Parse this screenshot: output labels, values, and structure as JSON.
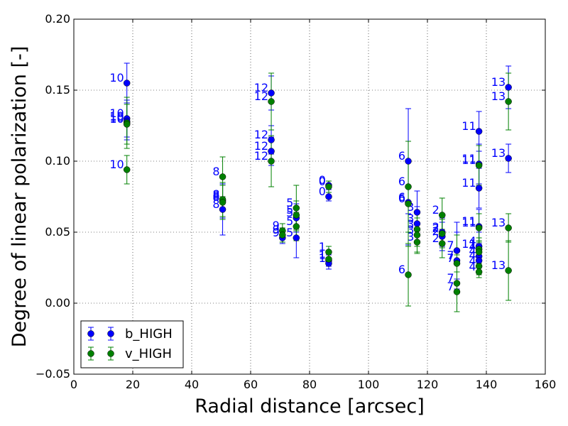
{
  "chart_data": {
    "type": "scatter",
    "xlabel": "Radial distance [arcsec]",
    "ylabel": "Degree of linear polarization [-]",
    "xlim": [
      0,
      160
    ],
    "ylim": [
      -0.05,
      0.2
    ],
    "xticks": [
      "0",
      "20",
      "40",
      "60",
      "80",
      "100",
      "120",
      "140",
      "160"
    ],
    "yticks": [
      "−0.05",
      "0.00",
      "0.05",
      "0.10",
      "0.15",
      "0.20"
    ],
    "grid": true,
    "legend_position": "lower-left",
    "series": [
      {
        "name": "b_HIGH",
        "color": "#0000ff",
        "points": [
          {
            "x": 18,
            "y": 0.155,
            "err": 0.014,
            "label": "10"
          },
          {
            "x": 18,
            "y": 0.13,
            "err": 0.013,
            "label": "10"
          },
          {
            "x": 18,
            "y": 0.128,
            "err": 0.013,
            "label": "10"
          },
          {
            "x": 50.5,
            "y": 0.072,
            "err": 0.012,
            "label": "8"
          },
          {
            "x": 50.5,
            "y": 0.066,
            "err": 0.018,
            "label": "8"
          },
          {
            "x": 67,
            "y": 0.148,
            "err": 0.012,
            "label": "12"
          },
          {
            "x": 67,
            "y": 0.115,
            "err": 0.01,
            "label": "12"
          },
          {
            "x": 67,
            "y": 0.107,
            "err": 0.01,
            "label": "12"
          },
          {
            "x": 70.8,
            "y": 0.046,
            "err": 0.004,
            "label": "9"
          },
          {
            "x": 75.5,
            "y": 0.06,
            "err": 0.01,
            "label": "5"
          },
          {
            "x": 75.5,
            "y": 0.046,
            "err": 0.014,
            "label": "5"
          },
          {
            "x": 86.5,
            "y": 0.083,
            "err": 0.003,
            "label": "0"
          },
          {
            "x": 86.5,
            "y": 0.075,
            "err": 0.003,
            "label": "0"
          },
          {
            "x": 86.5,
            "y": 0.03,
            "err": 0.004,
            "label": "1"
          },
          {
            "x": 86.5,
            "y": 0.028,
            "err": 0.004,
            "label": "1"
          },
          {
            "x": 113.5,
            "y": 0.1,
            "err": 0.037,
            "label": "6"
          },
          {
            "x": 113.5,
            "y": 0.071,
            "err": 0.03,
            "label": "6"
          },
          {
            "x": 116.5,
            "y": 0.064,
            "err": 0.015,
            "label": "3"
          },
          {
            "x": 116.5,
            "y": 0.056,
            "err": 0.012,
            "label": "3"
          },
          {
            "x": 125,
            "y": 0.05,
            "err": 0.01,
            "label": "2"
          },
          {
            "x": 125,
            "y": 0.047,
            "err": 0.01,
            "label": "2"
          },
          {
            "x": 130,
            "y": 0.037,
            "err": 0.02,
            "label": "7"
          },
          {
            "x": 130,
            "y": 0.03,
            "err": 0.02,
            "label": "7"
          },
          {
            "x": 137.5,
            "y": 0.121,
            "err": 0.014,
            "label": "11"
          },
          {
            "x": 137.5,
            "y": 0.098,
            "err": 0.014,
            "label": "11"
          },
          {
            "x": 137.5,
            "y": 0.081,
            "err": 0.014,
            "label": "11"
          },
          {
            "x": 137.5,
            "y": 0.054,
            "err": 0.012,
            "label": "11"
          },
          {
            "x": 137.5,
            "y": 0.04,
            "err": 0.01,
            "label": "4"
          },
          {
            "x": 137.5,
            "y": 0.033,
            "err": 0.008,
            "label": "4"
          },
          {
            "x": 137.5,
            "y": 0.03,
            "err": 0.008,
            "label": "4"
          },
          {
            "x": 147.5,
            "y": 0.152,
            "err": 0.015,
            "label": "13"
          },
          {
            "x": 147.5,
            "y": 0.102,
            "err": 0.01,
            "label": "13"
          }
        ]
      },
      {
        "name": "v_HIGH",
        "color": "#008000",
        "points": [
          {
            "x": 18,
            "y": 0.127,
            "err": 0.018,
            "label": "10"
          },
          {
            "x": 18,
            "y": 0.126,
            "err": 0.014,
            "label": "10"
          },
          {
            "x": 18,
            "y": 0.094,
            "err": 0.01,
            "label": "10"
          },
          {
            "x": 50.5,
            "y": 0.089,
            "err": 0.014,
            "label": "8"
          },
          {
            "x": 50.5,
            "y": 0.073,
            "err": 0.012,
            "label": "8"
          },
          {
            "x": 50.5,
            "y": 0.071,
            "err": 0.012,
            "label": "8"
          },
          {
            "x": 67,
            "y": 0.142,
            "err": 0.02,
            "label": "12"
          },
          {
            "x": 67,
            "y": 0.1,
            "err": 0.018,
            "label": "12"
          },
          {
            "x": 70.8,
            "y": 0.051,
            "err": 0.005,
            "label": "9"
          },
          {
            "x": 70.8,
            "y": 0.048,
            "err": 0.005,
            "label": "9"
          },
          {
            "x": 75.5,
            "y": 0.067,
            "err": 0.016,
            "label": "5"
          },
          {
            "x": 75.5,
            "y": 0.062,
            "err": 0.01,
            "label": "5"
          },
          {
            "x": 75.5,
            "y": 0.054,
            "err": 0.01,
            "label": "5"
          },
          {
            "x": 86.5,
            "y": 0.082,
            "err": 0.004,
            "label": "0"
          },
          {
            "x": 86.5,
            "y": 0.036,
            "err": 0.004,
            "label": "1"
          },
          {
            "x": 86.5,
            "y": 0.031,
            "err": 0.004,
            "label": "1"
          },
          {
            "x": 113.5,
            "y": 0.082,
            "err": 0.032,
            "label": "6"
          },
          {
            "x": 113.5,
            "y": 0.07,
            "err": 0.03,
            "label": "6"
          },
          {
            "x": 113.5,
            "y": 0.02,
            "err": 0.022,
            "label": "6"
          },
          {
            "x": 116.5,
            "y": 0.052,
            "err": 0.012,
            "label": "3"
          },
          {
            "x": 116.5,
            "y": 0.048,
            "err": 0.012,
            "label": "3"
          },
          {
            "x": 116.5,
            "y": 0.043,
            "err": 0.008,
            "label": "3"
          },
          {
            "x": 125,
            "y": 0.062,
            "err": 0.012,
            "label": "2"
          },
          {
            "x": 125,
            "y": 0.049,
            "err": 0.01,
            "label": "2"
          },
          {
            "x": 125,
            "y": 0.042,
            "err": 0.01,
            "label": "2"
          },
          {
            "x": 130,
            "y": 0.028,
            "err": 0.02,
            "label": "7"
          },
          {
            "x": 130,
            "y": 0.014,
            "err": 0.02,
            "label": "7"
          },
          {
            "x": 130,
            "y": 0.008,
            "err": 0.014,
            "label": "7"
          },
          {
            "x": 137.5,
            "y": 0.097,
            "err": 0.014,
            "label": "11"
          },
          {
            "x": 137.5,
            "y": 0.053,
            "err": 0.01,
            "label": "11"
          },
          {
            "x": 137.5,
            "y": 0.038,
            "err": 0.008,
            "label": "11"
          },
          {
            "x": 137.5,
            "y": 0.036,
            "err": 0.008,
            "label": "4"
          },
          {
            "x": 137.5,
            "y": 0.026,
            "err": 0.006,
            "label": "4"
          },
          {
            "x": 137.5,
            "y": 0.022,
            "err": 0.004,
            "label": "4"
          },
          {
            "x": 147.5,
            "y": 0.142,
            "err": 0.02,
            "label": "13"
          },
          {
            "x": 147.5,
            "y": 0.053,
            "err": 0.01,
            "label": "13"
          },
          {
            "x": 147.5,
            "y": 0.023,
            "err": 0.021,
            "label": "13"
          }
        ]
      }
    ]
  }
}
